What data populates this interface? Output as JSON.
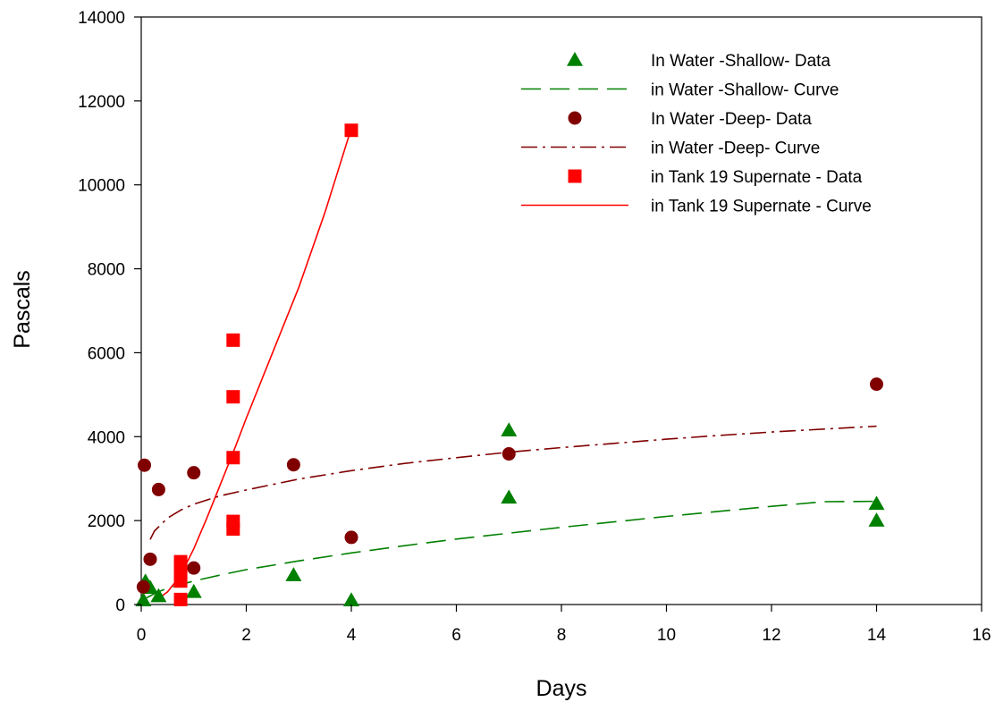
{
  "chart_data": {
    "type": "scatter",
    "xlabel": "Days",
    "ylabel": "Pascals",
    "xlim": [
      0,
      16
    ],
    "ylim": [
      0,
      14000
    ],
    "xticks": [
      "0",
      "2",
      "4",
      "6",
      "8",
      "10",
      "12",
      "14",
      "16"
    ],
    "yticks": [
      "0",
      "2000",
      "4000",
      "6000",
      "8000",
      "10000",
      "12000",
      "14000"
    ],
    "grid": false,
    "legend_position": "top-right",
    "series": [
      {
        "name": "In Water -Shallow- Data",
        "kind": "points",
        "marker": "triangle",
        "color": "#008000",
        "x": [
          0.04,
          0.08,
          0.17,
          0.33,
          1.0,
          2.9,
          4.0,
          7.0,
          7.0,
          14.0,
          14.0
        ],
        "y": [
          100,
          550,
          400,
          200,
          300,
          700,
          100,
          4150,
          2550,
          2400,
          2000
        ]
      },
      {
        "name": "in Water -Shallow- Curve",
        "kind": "curve",
        "dash": "dash",
        "color": "#008000",
        "x": [
          0.1,
          0.3,
          0.5,
          1,
          1.5,
          2,
          3,
          4,
          5,
          6,
          7,
          8,
          9,
          10,
          11,
          12,
          13,
          14
        ],
        "y": [
          160,
          290,
          390,
          560,
          700,
          830,
          1040,
          1230,
          1400,
          1560,
          1700,
          1840,
          1970,
          2100,
          2220,
          2340,
          2450,
          2460
        ]
      },
      {
        "name": "In Water -Deep- Data",
        "kind": "points",
        "marker": "circle",
        "color": "#800000",
        "x": [
          0.04,
          0.06,
          0.17,
          0.33,
          1.0,
          1.0,
          2.9,
          4.0,
          7.0,
          14.0
        ],
        "y": [
          420,
          3320,
          1080,
          2740,
          3140,
          870,
          3330,
          1600,
          3590,
          5250
        ]
      },
      {
        "name": "in Water -Deep- Curve",
        "kind": "curve",
        "dash": "dashdot",
        "color": "#800000",
        "x": [
          0.17,
          0.25,
          0.5,
          0.75,
          1,
          1.5,
          2,
          3,
          4,
          5,
          6,
          7,
          8,
          9,
          10,
          11,
          12,
          13,
          14
        ],
        "y": [
          1550,
          1750,
          2060,
          2250,
          2390,
          2590,
          2730,
          2990,
          3190,
          3360,
          3500,
          3630,
          3740,
          3840,
          3940,
          4030,
          4110,
          4180,
          4250
        ]
      },
      {
        "name": "in Tank 19 Supernate - Data",
        "kind": "points",
        "marker": "square",
        "color": "#ff0000",
        "x": [
          0.75,
          0.75,
          0.75,
          0.75,
          0.75,
          1.75,
          1.75,
          1.75,
          1.75,
          1.75,
          4.0
        ],
        "y": [
          120,
          560,
          750,
          900,
          1020,
          6300,
          4950,
          3500,
          1980,
          1800,
          11300
        ]
      },
      {
        "name": "in Tank 19 Supernate - Curve",
        "kind": "curve",
        "dash": "solid",
        "color": "#ff0000",
        "x": [
          0.3,
          0.5,
          0.75,
          1.0,
          1.25,
          1.5,
          1.75,
          2.0,
          2.5,
          3.0,
          3.5,
          4.0
        ],
        "y": [
          120,
          300,
          700,
          1330,
          2060,
          2840,
          3620,
          4440,
          6000,
          7560,
          9350,
          11350
        ]
      }
    ]
  }
}
